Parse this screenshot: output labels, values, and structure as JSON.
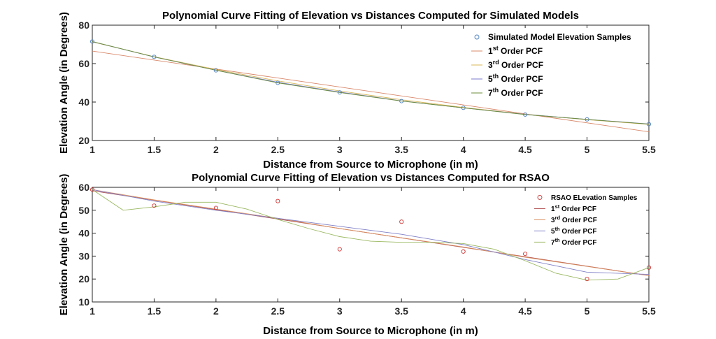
{
  "chart_data": [
    {
      "type": "scatter",
      "title": "Polynomial Curve Fitting of Elevation vs Distances Computed for Simulated Models",
      "xlabel": "Distance from Source to Microphone (in m)",
      "ylabel": "Elevation Angle (in Degrees)",
      "xlim": [
        1,
        5.5
      ],
      "ylim": [
        20,
        80
      ],
      "xticks": [
        1,
        1.5,
        2,
        2.5,
        3,
        3.5,
        4,
        4.5,
        5,
        5.5
      ],
      "yticks": [
        20,
        40,
        60,
        80
      ],
      "xtick_labels": [
        "1",
        "1.5",
        "2",
        "2.5",
        "3",
        "3.5",
        "4",
        "4.5",
        "5",
        "5.5"
      ],
      "ytick_labels": [
        "20",
        "40",
        "60",
        "80"
      ],
      "grid": false,
      "legend_position": "top-right",
      "samples": {
        "name": "Simulated Model Elevation Samples",
        "color": "#4a7fbf",
        "x": [
          1,
          1.5,
          2,
          2.5,
          3,
          3.5,
          4,
          4.5,
          5,
          5.5
        ],
        "y": [
          71.5,
          63.5,
          56.5,
          50,
          45,
          40.5,
          37,
          33.5,
          31,
          28.5
        ]
      },
      "fits": [
        {
          "base": "1",
          "sup": "st",
          "rest": " Order PCF",
          "color": "#d9886a",
          "x": [
            1,
            5.5
          ],
          "y": [
            66.5,
            24.5
          ]
        },
        {
          "base": "3",
          "sup": "rd",
          "rest": " Order PCF",
          "color": "#d9b95a",
          "x": [
            1,
            1.5,
            2,
            2.5,
            3,
            3.5,
            4,
            4.5,
            5,
            5.5
          ],
          "y": [
            71.3,
            63.6,
            56.9,
            51,
            45.8,
            41.2,
            37.2,
            33.7,
            30.8,
            28.4
          ]
        },
        {
          "base": "5",
          "sup": "th",
          "rest": " Order PCF",
          "color": "#7a7ad0",
          "x": [
            1,
            1.5,
            2,
            2.5,
            3,
            3.5,
            4,
            4.5,
            5,
            5.5
          ],
          "y": [
            71.4,
            63.5,
            56.6,
            50.3,
            45.2,
            40.6,
            37,
            33.6,
            31,
            28.6
          ]
        },
        {
          "base": "7",
          "sup": "th",
          "rest": " Order PCF",
          "color": "#6b8e3a",
          "x": [
            1,
            1.5,
            2,
            2.5,
            3,
            3.5,
            4,
            4.5,
            5,
            5.5
          ],
          "y": [
            71.5,
            63.5,
            56.5,
            50,
            45,
            40.5,
            37,
            33.5,
            31,
            28.5
          ]
        }
      ]
    },
    {
      "type": "scatter",
      "title": "Polynomial Curve Fitting of Elevation vs Distances Computed for RSAO",
      "xlabel": "Distance from Source to Microphone (in m)",
      "ylabel": "Elevation Angle (in Degrees)",
      "xlim": [
        1,
        5.5
      ],
      "ylim": [
        10,
        60
      ],
      "xticks": [
        1,
        1.5,
        2,
        2.5,
        3,
        3.5,
        4,
        4.5,
        5,
        5.5
      ],
      "yticks": [
        10,
        20,
        30,
        40,
        50,
        60
      ],
      "xtick_labels": [
        "1",
        "1.5",
        "2",
        "2.5",
        "3",
        "3.5",
        "4",
        "4.5",
        "5",
        "5.5"
      ],
      "ytick_labels": [
        "10",
        "20",
        "30",
        "40",
        "50",
        "60"
      ],
      "grid": false,
      "legend_position": "top-right",
      "samples": {
        "name": "RSAO ELevation Samples",
        "color": "#d03030",
        "x": [
          1,
          1.5,
          2,
          2.5,
          3,
          3.5,
          4,
          4.5,
          5,
          5.5
        ],
        "y": [
          59,
          52,
          51,
          54,
          33,
          45,
          32,
          31,
          20,
          25
        ]
      },
      "fits": [
        {
          "base": "1",
          "sup": "st",
          "rest": " Order PCF",
          "color": "#b05050",
          "x": [
            1,
            5.5
          ],
          "y": [
            58.5,
            21.5
          ]
        },
        {
          "base": "3",
          "sup": "rd",
          "rest": " Order PCF",
          "color": "#d99060",
          "x": [
            1,
            1.5,
            2,
            2.5,
            3,
            3.5,
            4,
            4.5,
            5,
            5.5
          ],
          "y": [
            59,
            54.5,
            50.5,
            46.5,
            42,
            38,
            34,
            29.5,
            25.5,
            21.5
          ]
        },
        {
          "base": "5",
          "sup": "th",
          "rest": " Order PCF",
          "color": "#8080c8",
          "x": [
            1,
            1.5,
            2,
            2.5,
            3,
            3.5,
            4,
            4.5,
            5,
            5.5
          ],
          "y": [
            59,
            54,
            50,
            46.5,
            43,
            39.5,
            35,
            28.5,
            23,
            22
          ]
        },
        {
          "base": "7",
          "sup": "th",
          "rest": " Order PCF",
          "color": "#9ab860",
          "x": [
            1,
            1.25,
            1.5,
            1.75,
            2,
            2.25,
            2.5,
            2.75,
            3,
            3.25,
            3.5,
            3.75,
            4,
            4.25,
            4.5,
            4.75,
            5,
            5.25,
            5.5
          ],
          "y": [
            59,
            50,
            51.5,
            53.5,
            53.5,
            50.5,
            46,
            42,
            38.5,
            36.5,
            36,
            36,
            35.5,
            33,
            28,
            22.5,
            19.5,
            20,
            25
          ]
        }
      ]
    }
  ]
}
